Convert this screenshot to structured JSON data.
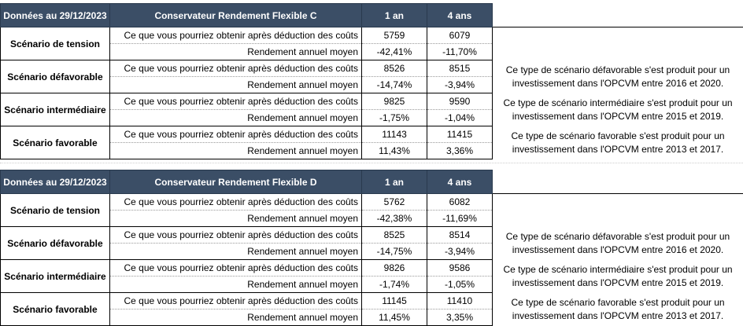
{
  "tables": [
    {
      "date_header": "Données au 29/12/2023",
      "fund_name": "Conservateur Rendement Flexible C",
      "col_1an": "1 an",
      "col_4ans": "4 ans",
      "rows": [
        {
          "scenario": "Scénario de tension",
          "label_cout": "Ce que vous pourriez obtenir après déduction des coûts",
          "label_rend": "Rendement annuel moyen",
          "cout_1an": "5759",
          "cout_4ans": "6079",
          "rend_1an": "-42,41%",
          "rend_4ans": "-11,70%",
          "comment": ""
        },
        {
          "scenario": "Scénario défavorable",
          "label_cout": "Ce que vous pourriez obtenir après déduction des coûts",
          "label_rend": "Rendement annuel moyen",
          "cout_1an": "8526",
          "cout_4ans": "8515",
          "rend_1an": "-14,74%",
          "rend_4ans": "-3,94%",
          "comment": "Ce type de scénario défavorable s'est produit pour un investissement dans l'OPCVM entre 2016 et 2020."
        },
        {
          "scenario": "Scénario intermédiaire",
          "label_cout": "Ce que vous pourriez obtenir après déduction des coûts",
          "label_rend": "Rendement annuel moyen",
          "cout_1an": "9825",
          "cout_4ans": "9590",
          "rend_1an": "-1,75%",
          "rend_4ans": "-1,04%",
          "comment": "Ce type de scénario intermédiaire s'est produit pour un investissement dans l'OPCVM entre 2015 et 2019."
        },
        {
          "scenario": "Scénario favorable",
          "label_cout": "Ce que vous pourriez obtenir après déduction des coûts",
          "label_rend": "Rendement annuel moyen",
          "cout_1an": "11143",
          "cout_4ans": "11415",
          "rend_1an": "11,43%",
          "rend_4ans": "3,36%",
          "comment": "Ce type de scénario favorable s'est produit pour un investissement dans l'OPCVM entre 2013 et 2017."
        }
      ]
    },
    {
      "date_header": "Données au 29/12/2023",
      "fund_name": "Conservateur Rendement Flexible D",
      "col_1an": "1 an",
      "col_4ans": "4 ans",
      "rows": [
        {
          "scenario": "Scénario de tension",
          "label_cout": "Ce que vous pourriez obtenir après déduction des coûts",
          "label_rend": "Rendement annuel moyen",
          "cout_1an": "5762",
          "cout_4ans": "6082",
          "rend_1an": "-42,38%",
          "rend_4ans": "-11,69%",
          "comment": ""
        },
        {
          "scenario": "Scénario défavorable",
          "label_cout": "Ce que vous pourriez obtenir après déduction des coûts",
          "label_rend": "Rendement annuel moyen",
          "cout_1an": "8525",
          "cout_4ans": "8514",
          "rend_1an": "-14,75%",
          "rend_4ans": "-3,94%",
          "comment": "Ce type de scénario défavorable s'est produit pour un investissement dans l'OPCVM entre 2016 et 2020."
        },
        {
          "scenario": "Scénario intermédiaire",
          "label_cout": "Ce que vous pourriez obtenir après déduction des coûts",
          "label_rend": "Rendement annuel moyen",
          "cout_1an": "9826",
          "cout_4ans": "9586",
          "rend_1an": "-1,74%",
          "rend_4ans": "-1,05%",
          "comment": "Ce type de scénario intermédiaire s'est produit pour un investissement dans l'OPCVM entre 2015 et 2019."
        },
        {
          "scenario": "Scénario favorable",
          "label_cout": "Ce que vous pourriez obtenir après déduction des coûts",
          "label_rend": "Rendement annuel moyen",
          "cout_1an": "11145",
          "cout_4ans": "11410",
          "rend_1an": "11,45%",
          "rend_4ans": "3,35%",
          "comment": "Ce type de scénario favorable s'est produit pour un investissement dans l'OPCVM entre 2013 et 2017."
        }
      ]
    }
  ]
}
